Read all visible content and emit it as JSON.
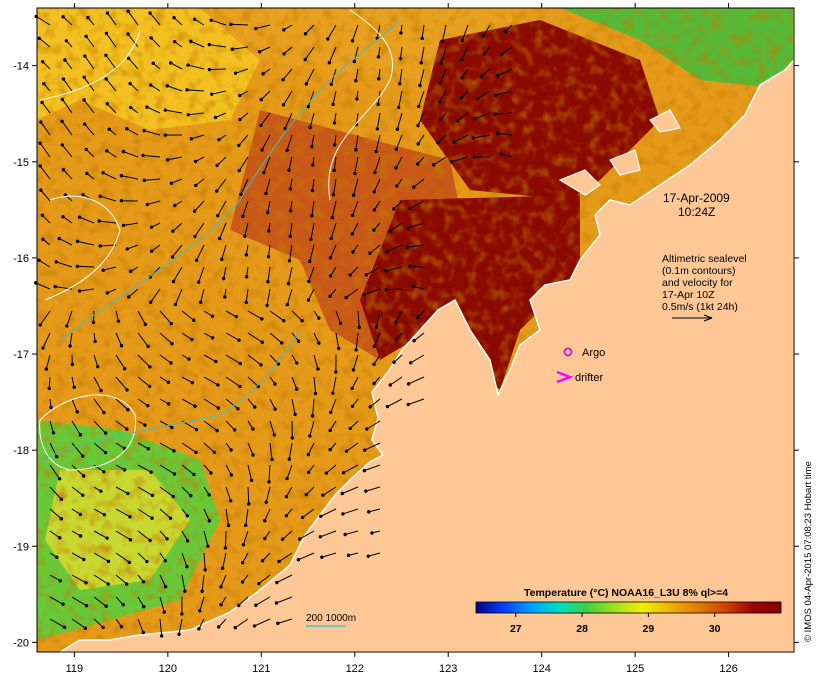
{
  "date_label": {
    "line1": "17-Apr-2009",
    "line2": "10:24Z"
  },
  "altimetry_label": {
    "lines": [
      "Altimetric sealevel",
      "(0.1m contours)",
      "and velocity for",
      "17-Apr 10Z",
      "0.5m/s (1kt 24h)"
    ]
  },
  "legend": {
    "argo": "Argo",
    "drifter": "drifter",
    "argo_color": "#d020d0",
    "drifter_color": "#ff00ff"
  },
  "depth_legend": {
    "label": "200  1000m",
    "color": "#40c0c0"
  },
  "colorbar": {
    "title": "Temperature (°C) NOAA16_L3U 8% ql>=4",
    "ticks": [
      27,
      28,
      29,
      30
    ],
    "range": [
      26.4,
      31.0
    ],
    "colors": [
      "#000080",
      "#0040ff",
      "#00a0ff",
      "#00e0c0",
      "#40d040",
      "#a0e020",
      "#f0f000",
      "#f0b000",
      "#e08000",
      "#d04000",
      "#a00000",
      "#800000"
    ]
  },
  "credit": "© IMOS 04-Apr-2015 07:08:23 Hobart time",
  "map_data": {
    "lon_ticks": [
      119,
      120,
      121,
      122,
      123,
      124,
      125,
      126
    ],
    "lat_ticks": [
      -14,
      -15,
      -16,
      -17,
      -18,
      -19,
      -20
    ],
    "lon_range": [
      118.6,
      126.7
    ],
    "lat_range": [
      -20.1,
      -13.4
    ],
    "land_color": "#fec896",
    "coast_color": "#ffffff"
  }
}
